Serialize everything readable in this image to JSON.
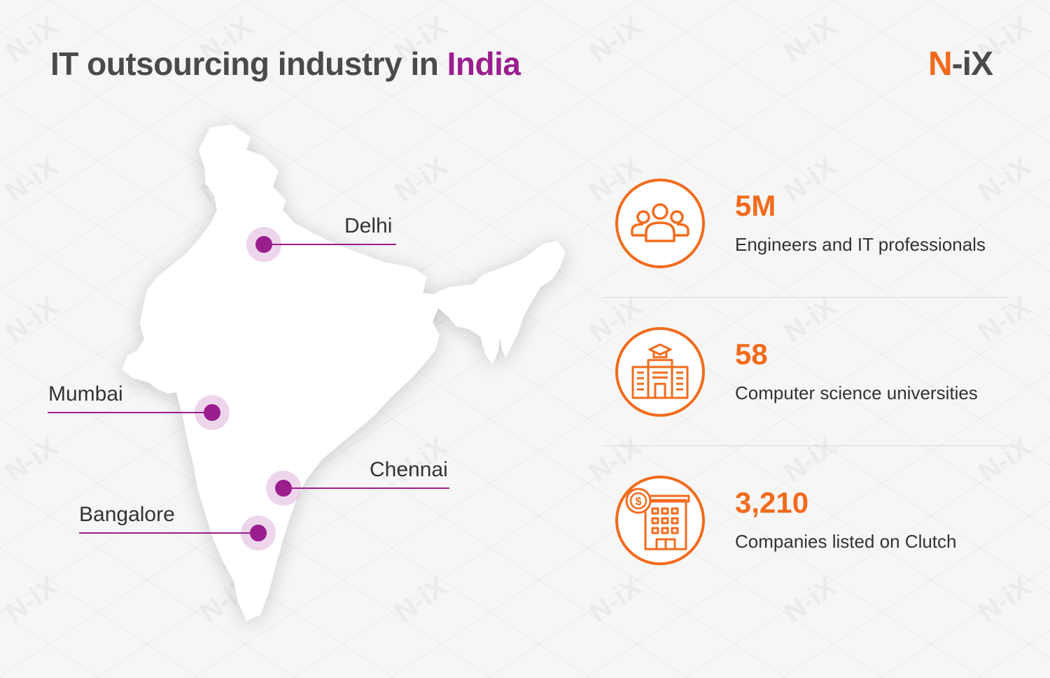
{
  "header": {
    "title_prefix": "IT outsourcing industry in",
    "title_highlight": "India",
    "logo_n": "N",
    "logo_dash": "-",
    "logo_ix": "iX",
    "watermark_text": "N-iX"
  },
  "colors": {
    "accent_purple": "#9b1e8e",
    "accent_orange": "#f26b1d",
    "text_dark": "#4a4a4a"
  },
  "map": {
    "cities": [
      {
        "name": "Delhi"
      },
      {
        "name": "Mumbai"
      },
      {
        "name": "Chennai"
      },
      {
        "name": "Bangalore"
      }
    ]
  },
  "stats": [
    {
      "value": "5M",
      "label": "Engineers and IT professionals",
      "icon": "people-group-icon"
    },
    {
      "value": "58",
      "label": "Computer science universities",
      "icon": "university-building-icon"
    },
    {
      "value": "3,210",
      "label": "Companies listed on Clutch",
      "icon": "company-building-dollar-icon"
    }
  ]
}
